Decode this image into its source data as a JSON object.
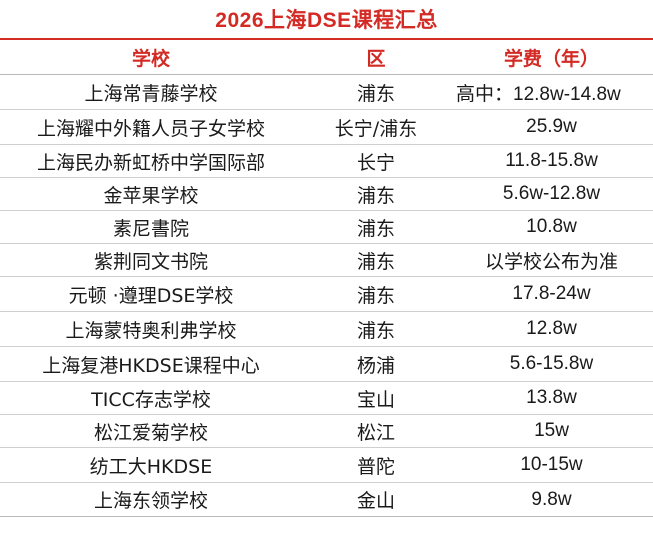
{
  "title": "2026上海DSE课程汇总",
  "columns": {
    "school": "学校",
    "district": "区",
    "fee": "学费（年）"
  },
  "rows": [
    {
      "school": "上海常青藤学校",
      "district": "浦东",
      "fee": "高中：12.8w-14.8w"
    },
    {
      "school": "上海耀中外籍人员子女学校",
      "district": "长宁/浦东",
      "fee": "25.9w"
    },
    {
      "school": "上海民办新虹桥中学国际部",
      "district": "长宁",
      "fee": "11.8-15.8w"
    },
    {
      "school": "金苹果学校",
      "district": "浦东",
      "fee": "5.6w-12.8w"
    },
    {
      "school": "素尼書院",
      "district": "浦东",
      "fee": "10.8w"
    },
    {
      "school": "紫荆同文书院",
      "district": "浦东",
      "fee": "以学校公布为准"
    },
    {
      "school": "元顿 ·遵理DSE学校",
      "district": "浦东",
      "fee": "17.8-24w"
    },
    {
      "school": "上海蒙特奥利弗学校",
      "district": "浦东",
      "fee": "12.8w"
    },
    {
      "school": "上海复港HKDSE课程中心",
      "district": "杨浦",
      "fee": "5.6-15.8w"
    },
    {
      "school": "TICC存志学校",
      "district": "宝山",
      "fee": "13.8w"
    },
    {
      "school": "松江爱菊学校",
      "district": "松江",
      "fee": "15w"
    },
    {
      "school": "纺工大HKDSE",
      "district": "普陀",
      "fee": "10-15w"
    },
    {
      "school": "上海东领学校",
      "district": "金山",
      "fee": "9.8w"
    }
  ],
  "colors": {
    "accent": "#d32a24",
    "text": "#1a1a1a",
    "rule": "#cfcfcf"
  }
}
